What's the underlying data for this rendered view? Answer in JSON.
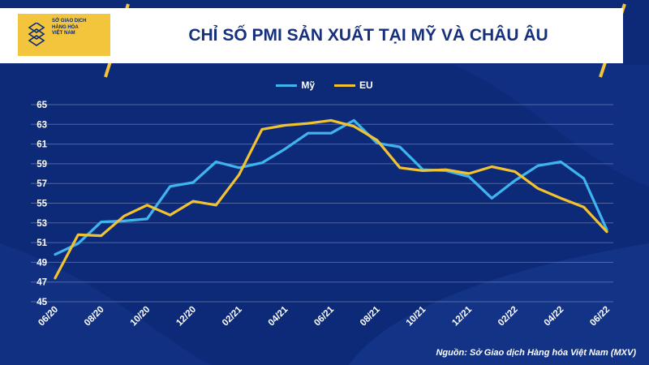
{
  "header": {
    "title": "CHỈ SỐ PMI SẢN XUẤT TẠI MỸ VÀ CHÂU ÂU",
    "logo_lines": [
      "SỞ GIAO DỊCH",
      "HÀNG HÓA",
      "VIỆT NAM"
    ]
  },
  "colors": {
    "background": "#0d2a78",
    "my": "#3fb5f0",
    "eu": "#f2c230",
    "gold": "#f2c53d"
  },
  "source": "Nguồn: Sở Giao dịch Hàng hóa Việt Nam (MXV)",
  "chart_data": {
    "type": "line",
    "title": "CHỈ SỐ PMI SẢN XUẤT TẠI MỸ VÀ CHÂU ÂU",
    "legend_position": "top-center",
    "grid": true,
    "ylim": [
      45,
      65
    ],
    "yticks": [
      45,
      47,
      49,
      51,
      53,
      55,
      57,
      59,
      61,
      63,
      65
    ],
    "x": [
      "06/20",
      "07/20",
      "08/20",
      "09/20",
      "10/20",
      "11/20",
      "12/20",
      "01/21",
      "02/21",
      "03/21",
      "04/21",
      "05/21",
      "06/21",
      "07/21",
      "08/21",
      "09/21",
      "10/21",
      "11/21",
      "12/21",
      "01/22",
      "02/22",
      "03/22",
      "04/22",
      "05/22",
      "06/22"
    ],
    "xtick_labels": [
      "06/20",
      "08/20",
      "10/20",
      "12/20",
      "02/21",
      "04/21",
      "06/21",
      "08/21",
      "10/21",
      "12/21",
      "02/22",
      "04/22",
      "06/22"
    ],
    "series": [
      {
        "name": "Mỹ",
        "color": "#3fb5f0",
        "values": [
          49.8,
          50.9,
          53.1,
          53.2,
          53.4,
          56.7,
          57.1,
          59.2,
          58.6,
          59.1,
          60.5,
          62.1,
          62.1,
          63.4,
          61.1,
          60.7,
          58.4,
          58.3,
          57.7,
          55.5,
          57.3,
          58.8,
          59.2,
          57.5,
          52.3
        ]
      },
      {
        "name": "EU",
        "color": "#f2c230",
        "values": [
          47.4,
          51.8,
          51.7,
          53.7,
          54.8,
          53.8,
          55.2,
          54.8,
          57.9,
          62.5,
          62.9,
          63.1,
          63.4,
          62.8,
          61.4,
          58.6,
          58.3,
          58.4,
          58.0,
          58.7,
          58.2,
          56.5,
          55.5,
          54.6,
          52.1
        ]
      }
    ]
  }
}
